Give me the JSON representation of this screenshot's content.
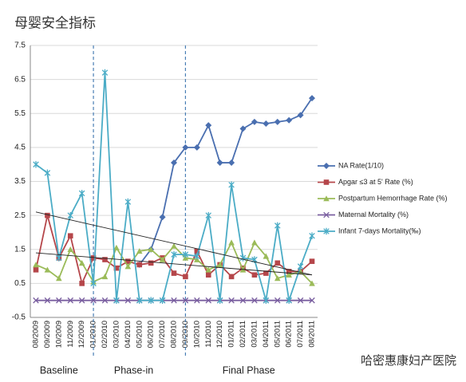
{
  "chart_data": {
    "type": "line",
    "title": "母婴安全指标",
    "categories": [
      "08/2009",
      "09/2009",
      "10/2009",
      "11/2009",
      "12/2009",
      "01/2010",
      "02/2010",
      "03/2010",
      "04/2010",
      "05/2010",
      "06/2010",
      "07/2010",
      "08/2010",
      "09/2010",
      "10/2010",
      "11/2010",
      "12/2010",
      "01/2011",
      "02/2011",
      "03/2011",
      "04/2011",
      "05/2011",
      "06/2011",
      "07/2011",
      "08/2011"
    ],
    "series": [
      {
        "name": "NA Rate(1/10)",
        "color": "#4a6fb0",
        "marker": "diamond",
        "values": [
          null,
          null,
          null,
          null,
          null,
          null,
          null,
          null,
          null,
          1.05,
          1.5,
          2.45,
          4.05,
          4.5,
          4.5,
          5.15,
          4.05,
          4.05,
          5.05,
          5.25,
          5.2,
          5.25,
          5.3,
          5.45,
          5.95
        ]
      },
      {
        "name": "Apgar ≤3 at 5' Rate (%)",
        "color": "#b5464a",
        "marker": "square",
        "values": [
          0.9,
          2.5,
          1.25,
          1.9,
          0.5,
          1.25,
          1.2,
          0.95,
          1.15,
          1.05,
          1.1,
          1.25,
          0.8,
          0.7,
          1.45,
          0.75,
          1.05,
          0.7,
          0.95,
          0.75,
          0.8,
          1.1,
          0.85,
          0.85,
          1.15
        ]
      },
      {
        "name": "Postpartum Hemorrhage Rate (%)",
        "color": "#9bbb59",
        "marker": "triangle",
        "values": [
          1.05,
          0.9,
          0.65,
          1.5,
          1.1,
          0.55,
          0.7,
          1.55,
          1.0,
          1.45,
          1.5,
          1.2,
          1.6,
          1.25,
          1.2,
          0.9,
          1.05,
          1.7,
          0.9,
          1.7,
          1.3,
          0.65,
          0.75,
          0.85,
          0.5
        ]
      },
      {
        "name": "Maternal Mortality (%)",
        "color": "#7a5fa0",
        "marker": "x",
        "values": [
          0,
          0,
          0,
          0,
          0,
          0,
          0,
          0,
          0,
          0,
          0,
          0,
          0,
          0,
          0,
          0,
          0,
          0,
          0,
          0,
          0,
          0,
          0,
          0,
          0
        ]
      },
      {
        "name": "Infant 7-days Mortality(‰)",
        "color": "#4bacc6",
        "marker": "star",
        "values": [
          4.0,
          3.75,
          1.25,
          2.5,
          3.15,
          0.5,
          6.7,
          0.0,
          2.9,
          0.0,
          0.0,
          0.0,
          1.35,
          1.35,
          1.3,
          2.5,
          0.0,
          3.4,
          1.25,
          1.2,
          0.0,
          2.2,
          0.0,
          1.0,
          1.9
        ]
      }
    ],
    "trend_lines": [
      {
        "values": [
          2.6,
          0.75
        ]
      },
      {
        "values": [
          1.4,
          0.75
        ]
      }
    ],
    "phases": [
      {
        "label": "Baseline",
        "from": "08/2009",
        "to": "12/2009"
      },
      {
        "label": "Phase-in",
        "from": "01/2010",
        "to": "08/2010"
      },
      {
        "label": "Final Phase",
        "from": "09/2010",
        "to": "08/2011"
      }
    ],
    "phase_dividers": [
      "01/2010",
      "09/2010"
    ],
    "ylim": [
      -0.5,
      7.5
    ],
    "yticks": [
      -0.5,
      0.5,
      1.5,
      2.5,
      3.5,
      4.5,
      5.5,
      6.5,
      7.5
    ],
    "grid": true,
    "legend": "right",
    "watermark": "哈密惠康妇产医院"
  }
}
